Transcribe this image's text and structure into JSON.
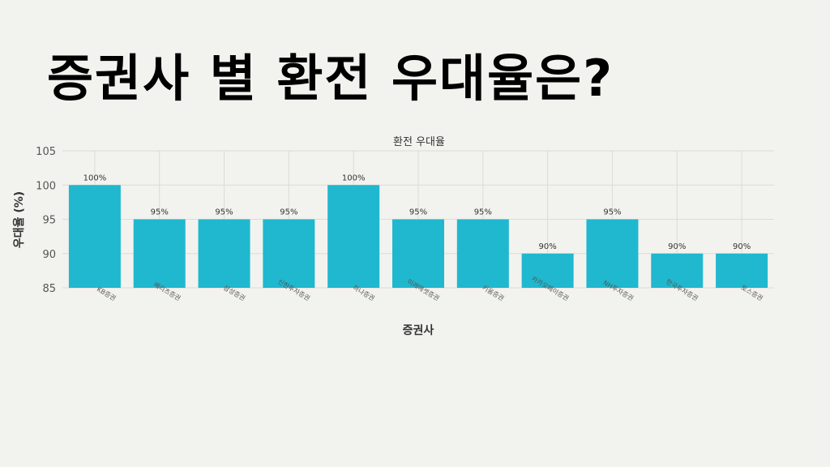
{
  "headline": "증권사 별 환전 우대율은?",
  "chart_data": {
    "type": "bar",
    "title": "환전 우대율",
    "xlabel": "증권사",
    "ylabel": "우대율 (%)",
    "ylim": [
      85,
      105
    ],
    "yticks": [
      85,
      90,
      95,
      100,
      105
    ],
    "grid": true,
    "bar_color": "#1fb8cf",
    "categories": [
      "KB증권",
      "메리츠증권",
      "삼성증권",
      "신한투자증권",
      "하나증권",
      "미래에셋증권",
      "키움증권",
      "카카오페이증권",
      "NH투자증권",
      "한국투자증권",
      "토스증권"
    ],
    "values": [
      100,
      95,
      95,
      95,
      100,
      95,
      95,
      90,
      95,
      90,
      90
    ],
    "data_labels": [
      "100%",
      "95%",
      "95%",
      "95%",
      "100%",
      "95%",
      "95%",
      "90%",
      "95%",
      "90%",
      "90%"
    ]
  }
}
